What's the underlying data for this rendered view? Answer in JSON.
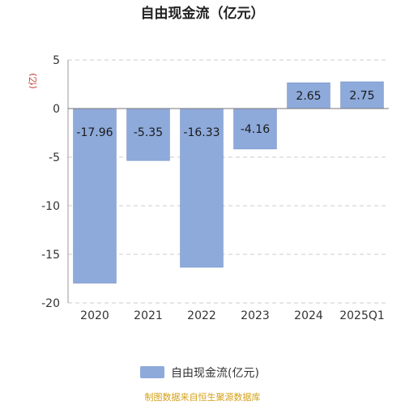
{
  "chart_data": {
    "type": "bar",
    "title": "自由现金流（亿元）",
    "ylabel": "(亿)",
    "categories": [
      "2020",
      "2021",
      "2022",
      "2023",
      "2024",
      "2025Q1"
    ],
    "series": [
      {
        "name": "自由现金流(亿元)",
        "values": [
          -17.96,
          -5.35,
          -16.33,
          -4.16,
          2.65,
          2.75
        ],
        "data_labels": [
          "-17.96",
          "-5.35",
          "-16.33",
          "-4.16",
          "2.65",
          "2.75"
        ],
        "color": "#8eaadb"
      }
    ],
    "ylim": [
      -20,
      5
    ],
    "yticks": [
      5,
      0,
      -5,
      -10,
      -15,
      -20
    ],
    "grid": true,
    "legend_position": "bottom"
  },
  "source_note": "制图数据来自恒生聚源数据库"
}
